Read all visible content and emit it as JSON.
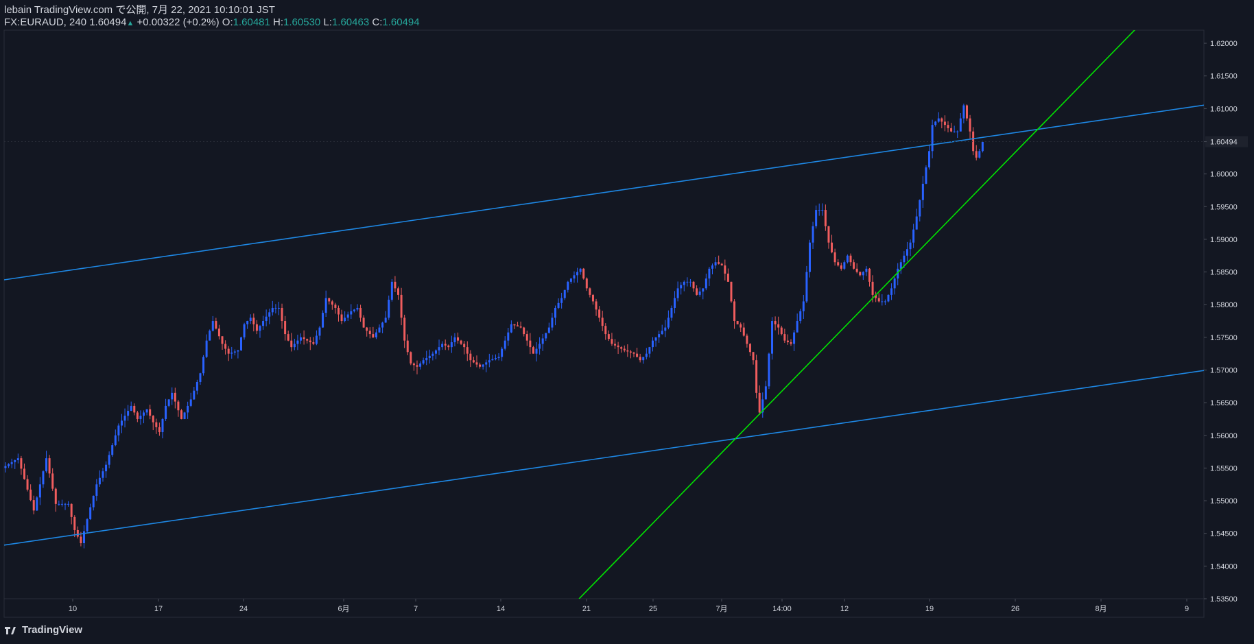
{
  "header": {
    "publish_line": "lebain TradingView.com で公開, 7月 22, 2021 10:10:01 JST",
    "symbol": "FX:EURAUD, 240",
    "last": "1.60494",
    "change": "+0.00322 (+0.2%)",
    "o_label": "O:",
    "o_value": "1.60481",
    "h_label": "H:",
    "h_value": "1.60530",
    "l_label": "L:",
    "l_value": "1.60463",
    "c_label": "C:",
    "c_value": "1.60494"
  },
  "footer": {
    "brand": "TradingView"
  },
  "colors": {
    "background": "#131722",
    "up": "#2962ff",
    "down": "#f05d5e",
    "channel": "#1e88e5",
    "trend": "#00e600",
    "text": "#d1d4dc"
  },
  "chart_data": {
    "type": "candlestick",
    "symbol": "FX:EURAUD",
    "interval": "240",
    "price_axis": {
      "range": [
        1.535,
        1.622
      ],
      "ticks": [
        "1.62000",
        "1.61500",
        "1.61000",
        "1.60494",
        "1.60000",
        "1.59500",
        "1.59000",
        "1.58500",
        "1.58000",
        "1.57500",
        "1.57000",
        "1.56500",
        "1.56000",
        "1.55500",
        "1.55000",
        "1.54500",
        "1.54000",
        "1.53500"
      ],
      "current_price": "1.60494"
    },
    "time_axis": {
      "ticks": [
        "10",
        "17",
        "24",
        "6月",
        "7",
        "14",
        "21",
        "25",
        "7月",
        "14:00",
        "12",
        "19",
        "26",
        "8月",
        "9"
      ]
    },
    "grid": false,
    "price_path": [
      [
        0,
        1.555
      ],
      [
        5,
        1.5565
      ],
      [
        10,
        1.5485
      ],
      [
        14,
        1.5565
      ],
      [
        17,
        1.5495
      ],
      [
        21,
        1.5495
      ],
      [
        23,
        1.5455
      ],
      [
        25,
        1.5435
      ],
      [
        28,
        1.549
      ],
      [
        30,
        1.5525
      ],
      [
        33,
        1.5555
      ],
      [
        37,
        1.5615
      ],
      [
        41,
        1.5645
      ],
      [
        43,
        1.5625
      ],
      [
        46,
        1.564
      ],
      [
        48,
        1.562
      ],
      [
        50,
        1.5605
      ],
      [
        52,
        1.5645
      ],
      [
        54,
        1.5665
      ],
      [
        57,
        1.5625
      ],
      [
        60,
        1.5655
      ],
      [
        63,
        1.5695
      ],
      [
        65,
        1.5745
      ],
      [
        67,
        1.5775
      ],
      [
        70,
        1.574
      ],
      [
        72,
        1.5725
      ],
      [
        75,
        1.573
      ],
      [
        77,
        1.577
      ],
      [
        79,
        1.578
      ],
      [
        81,
        1.576
      ],
      [
        83,
        1.5775
      ],
      [
        86,
        1.5795
      ],
      [
        88,
        1.5795
      ],
      [
        90,
        1.5755
      ],
      [
        92,
        1.5735
      ],
      [
        95,
        1.575
      ],
      [
        97,
        1.5745
      ],
      [
        99,
        1.574
      ],
      [
        101,
        1.5765
      ],
      [
        103,
        1.581
      ],
      [
        106,
        1.5795
      ],
      [
        108,
        1.5775
      ],
      [
        111,
        1.579
      ],
      [
        113,
        1.5795
      ],
      [
        115,
        1.5765
      ],
      [
        118,
        1.575
      ],
      [
        120,
        1.5765
      ],
      [
        122,
        1.578
      ],
      [
        124,
        1.5835
      ],
      [
        126,
        1.5815
      ],
      [
        128,
        1.5745
      ],
      [
        130,
        1.571
      ],
      [
        132,
        1.5705
      ],
      [
        134,
        1.5715
      ],
      [
        137,
        1.5725
      ],
      [
        140,
        1.574
      ],
      [
        142,
        1.5735
      ],
      [
        144,
        1.575
      ],
      [
        147,
        1.5735
      ],
      [
        149,
        1.5715
      ],
      [
        152,
        1.5705
      ],
      [
        155,
        1.5715
      ],
      [
        158,
        1.572
      ],
      [
        160,
        1.5745
      ],
      [
        162,
        1.577
      ],
      [
        165,
        1.5765
      ],
      [
        167,
        1.5745
      ],
      [
        169,
        1.5725
      ],
      [
        171,
        1.574
      ],
      [
        174,
        1.5765
      ],
      [
        176,
        1.5795
      ],
      [
        178,
        1.581
      ],
      [
        180,
        1.5835
      ],
      [
        182,
        1.5845
      ],
      [
        184,
        1.5855
      ],
      [
        186,
        1.5825
      ],
      [
        188,
        1.5805
      ],
      [
        190,
        1.578
      ],
      [
        192,
        1.5755
      ],
      [
        194,
        1.574
      ],
      [
        196,
        1.5735
      ],
      [
        198,
        1.573
      ],
      [
        201,
        1.5725
      ],
      [
        203,
        1.5715
      ],
      [
        205,
        1.5725
      ],
      [
        207,
        1.5745
      ],
      [
        209,
        1.5755
      ],
      [
        211,
        1.5765
      ],
      [
        213,
        1.5795
      ],
      [
        215,
        1.5825
      ],
      [
        217,
        1.5835
      ],
      [
        219,
        1.5835
      ],
      [
        221,
        1.5815
      ],
      [
        223,
        1.5825
      ],
      [
        225,
        1.5855
      ],
      [
        227,
        1.5865
      ],
      [
        229,
        1.586
      ],
      [
        231,
        1.5835
      ],
      [
        233,
        1.5775
      ],
      [
        235,
        1.5765
      ],
      [
        237,
        1.574
      ],
      [
        239,
        1.5715
      ],
      [
        240,
        1.5665
      ],
      [
        241,
        1.5635
      ],
      [
        243,
        1.5675
      ],
      [
        245,
        1.5775
      ],
      [
        247,
        1.5765
      ],
      [
        249,
        1.5745
      ],
      [
        251,
        1.574
      ],
      [
        253,
        1.5775
      ],
      [
        255,
        1.5805
      ],
      [
        257,
        1.5895
      ],
      [
        259,
        1.5945
      ],
      [
        261,
        1.5945
      ],
      [
        263,
        1.5895
      ],
      [
        265,
        1.5865
      ],
      [
        267,
        1.5855
      ],
      [
        269,
        1.5875
      ],
      [
        271,
        1.5855
      ],
      [
        273,
        1.5845
      ],
      [
        275,
        1.5855
      ],
      [
        277,
        1.5815
      ],
      [
        279,
        1.5805
      ],
      [
        281,
        1.5805
      ],
      [
        283,
        1.5825
      ],
      [
        285,
        1.5855
      ],
      [
        287,
        1.5875
      ],
      [
        289,
        1.5895
      ],
      [
        291,
        1.5935
      ],
      [
        293,
        1.5985
      ],
      [
        295,
        1.6035
      ],
      [
        296,
        1.6075
      ],
      [
        298,
        1.6085
      ],
      [
        300,
        1.6075
      ],
      [
        302,
        1.6065
      ],
      [
        304,
        1.6065
      ],
      [
        306,
        1.6105
      ],
      [
        308,
        1.6065
      ],
      [
        309,
        1.6035
      ],
      [
        310,
        1.6025
      ],
      [
        311,
        1.6035
      ],
      [
        312,
        1.6049
      ]
    ],
    "lines": [
      {
        "name": "",
        "color": "#1e88e5",
        "from": [
          0,
          1.5838
        ],
        "to": [
          400,
          1.6118
        ]
      },
      {
        "name": "",
        "color": "#1e88e5",
        "from": [
          0,
          1.5432
        ],
        "to": [
          400,
          1.5712
        ]
      },
      {
        "name": "",
        "color": "#00e600",
        "from": [
          183,
          1.535
        ],
        "to": [
          360,
          1.6221
        ]
      }
    ]
  }
}
